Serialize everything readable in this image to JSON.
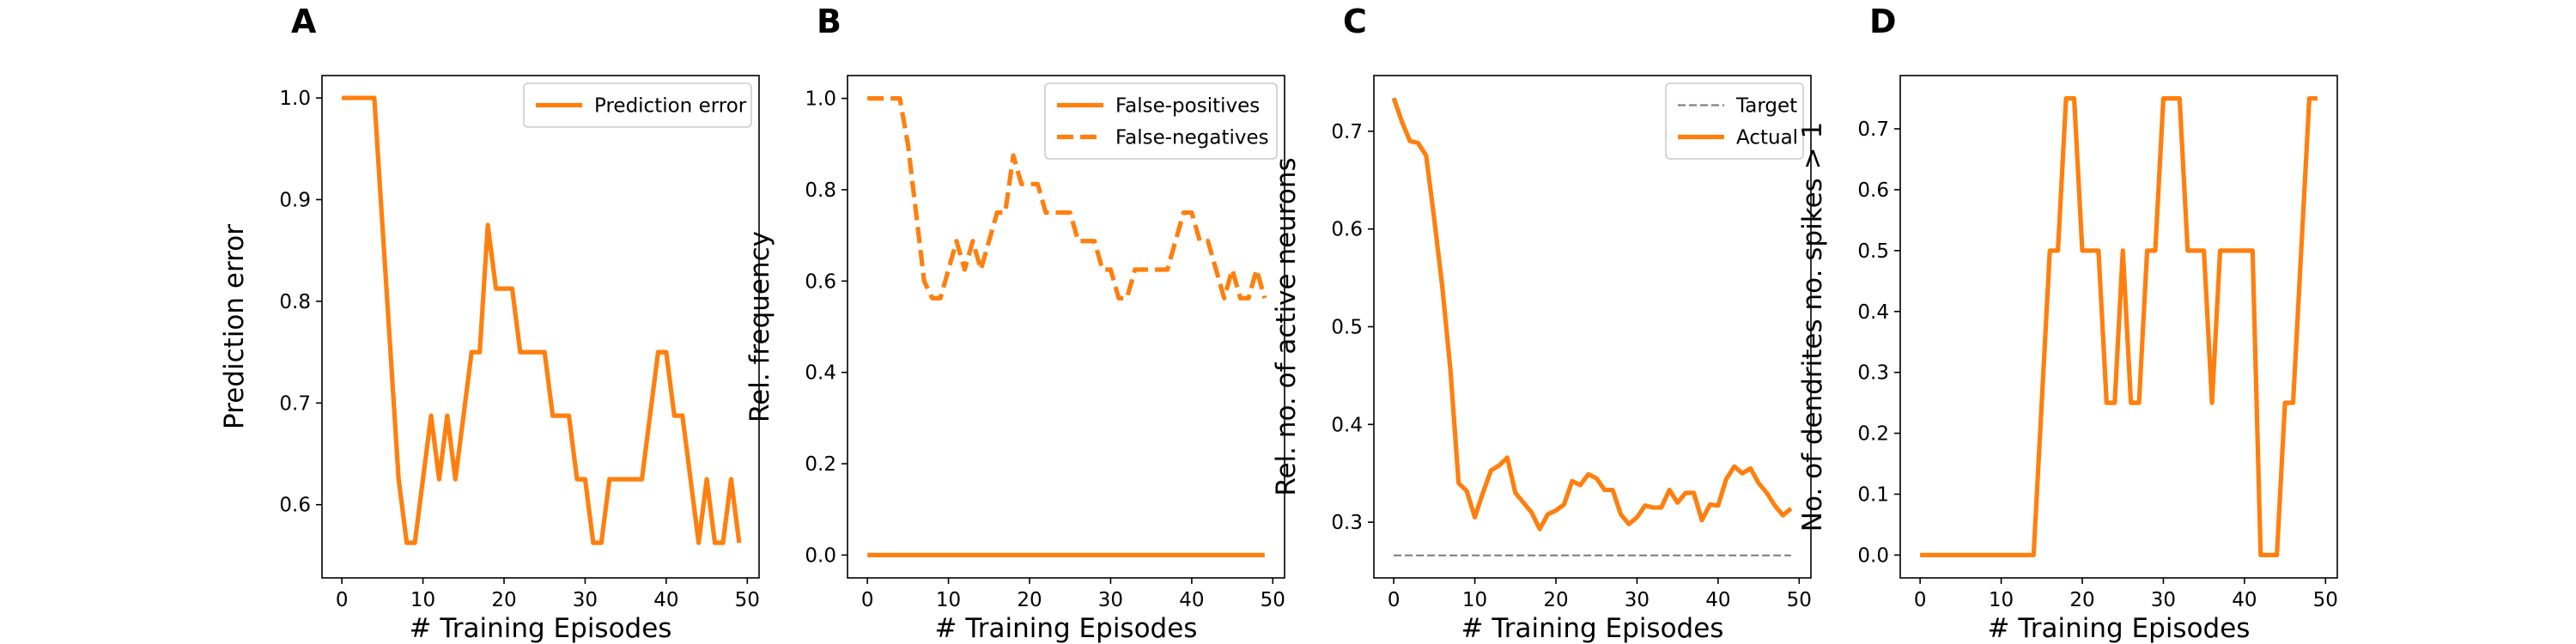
{
  "colors": {
    "series": "#ff7f0e",
    "target": "#808080",
    "frame": "#000000",
    "legend_border": "#cccccc"
  },
  "chart_data": [
    {
      "type": "line",
      "panel_label": "A",
      "xlabel": "# Training Episodes",
      "ylabel": "Prediction error",
      "xlim": [
        -2.45,
        51.45
      ],
      "ylim": [
        0.528,
        1.022
      ],
      "xticks": [
        0,
        10,
        20,
        30,
        40,
        50
      ],
      "yticks": [
        0.6,
        0.7,
        0.8,
        0.9,
        1.0
      ],
      "ytick_format": 1,
      "legend_position": "upper-right",
      "series": [
        {
          "name": "Prediction error",
          "style": "solid",
          "x": [
            0,
            1,
            2,
            3,
            4,
            5,
            6,
            7,
            8,
            9,
            10,
            11,
            12,
            13,
            14,
            15,
            16,
            17,
            18,
            19,
            20,
            21,
            22,
            23,
            24,
            25,
            26,
            27,
            28,
            29,
            30,
            31,
            32,
            33,
            34,
            35,
            36,
            37,
            38,
            39,
            40,
            41,
            42,
            43,
            44,
            45,
            46,
            47,
            48,
            49
          ],
          "y": [
            1.0,
            1.0,
            1.0,
            1.0,
            1.0,
            0.875,
            0.75,
            0.625,
            0.5625,
            0.5625,
            0.625,
            0.6875,
            0.625,
            0.6875,
            0.625,
            0.6875,
            0.75,
            0.75,
            0.875,
            0.8125,
            0.8125,
            0.8125,
            0.75,
            0.75,
            0.75,
            0.75,
            0.6875,
            0.6875,
            0.6875,
            0.625,
            0.625,
            0.5625,
            0.5625,
            0.625,
            0.625,
            0.625,
            0.625,
            0.625,
            0.6875,
            0.75,
            0.75,
            0.6875,
            0.6875,
            0.625,
            0.5625,
            0.625,
            0.5625,
            0.5625,
            0.625,
            0.5625
          ]
        }
      ]
    },
    {
      "type": "line",
      "panel_label": "B",
      "xlabel": "# Training Episodes",
      "ylabel": "Rel. frequency",
      "xlim": [
        -2.45,
        51.45
      ],
      "ylim": [
        -0.05,
        1.05
      ],
      "xticks": [
        0,
        10,
        20,
        30,
        40,
        50
      ],
      "yticks": [
        0.0,
        0.2,
        0.4,
        0.6,
        0.8,
        1.0
      ],
      "ytick_format": 1,
      "legend_position": "upper-right",
      "series": [
        {
          "name": "False-positives",
          "style": "solid",
          "x": [
            0,
            49
          ],
          "y": [
            0.0,
            0.0
          ]
        },
        {
          "name": "False-negatives",
          "style": "dashed",
          "x": [
            0,
            1,
            2,
            3,
            4,
            5,
            6,
            7,
            8,
            9,
            10,
            11,
            12,
            13,
            14,
            15,
            16,
            17,
            18,
            19,
            20,
            21,
            22,
            23,
            24,
            25,
            26,
            27,
            28,
            29,
            30,
            31,
            32,
            33,
            34,
            35,
            36,
            37,
            38,
            39,
            40,
            41,
            42,
            43,
            44,
            45,
            46,
            47,
            48,
            49
          ],
          "y": [
            1.0,
            1.0,
            1.0,
            1.0,
            1.0,
            0.9,
            0.75,
            0.6,
            0.5625,
            0.5625,
            0.625,
            0.6875,
            0.625,
            0.6875,
            0.625,
            0.6875,
            0.75,
            0.75,
            0.875,
            0.8125,
            0.8125,
            0.8125,
            0.75,
            0.75,
            0.75,
            0.75,
            0.6875,
            0.6875,
            0.6875,
            0.625,
            0.625,
            0.5625,
            0.5625,
            0.625,
            0.625,
            0.625,
            0.625,
            0.625,
            0.6875,
            0.75,
            0.75,
            0.6875,
            0.6875,
            0.625,
            0.5625,
            0.625,
            0.5625,
            0.5625,
            0.625,
            0.5625
          ]
        }
      ]
    },
    {
      "type": "line",
      "panel_label": "C",
      "xlabel": "# Training Episodes",
      "ylabel": "Rel. no. of active neurons",
      "xlim": [
        -2.45,
        51.45
      ],
      "ylim": [
        0.243,
        0.757
      ],
      "xticks": [
        0,
        10,
        20,
        30,
        40,
        50
      ],
      "yticks": [
        0.3,
        0.4,
        0.5,
        0.6,
        0.7
      ],
      "ytick_format": 1,
      "legend_position": "upper-right",
      "series": [
        {
          "name": "Target",
          "style": "dashed-thin",
          "x": [
            0,
            49
          ],
          "y": [
            0.266,
            0.266
          ]
        },
        {
          "name": "Actual",
          "style": "solid",
          "x": [
            0,
            1,
            2,
            3,
            4,
            5,
            6,
            7,
            8,
            9,
            10,
            11,
            12,
            13,
            14,
            15,
            16,
            17,
            18,
            19,
            20,
            21,
            22,
            23,
            24,
            25,
            26,
            27,
            28,
            29,
            30,
            31,
            32,
            33,
            34,
            35,
            36,
            37,
            38,
            39,
            40,
            41,
            42,
            43,
            44,
            45,
            46,
            47,
            48,
            49
          ],
          "y": [
            0.734,
            0.71,
            0.69,
            0.688,
            0.675,
            0.61,
            0.54,
            0.455,
            0.34,
            0.332,
            0.305,
            0.33,
            0.353,
            0.358,
            0.366,
            0.33,
            0.32,
            0.31,
            0.293,
            0.308,
            0.312,
            0.318,
            0.342,
            0.338,
            0.349,
            0.345,
            0.333,
            0.333,
            0.308,
            0.298,
            0.305,
            0.317,
            0.315,
            0.315,
            0.333,
            0.32,
            0.33,
            0.33,
            0.302,
            0.318,
            0.317,
            0.344,
            0.357,
            0.35,
            0.355,
            0.34,
            0.33,
            0.317,
            0.307,
            0.314
          ]
        }
      ]
    },
    {
      "type": "line",
      "panel_label": "D",
      "xlabel": "# Training Episodes",
      "ylabel": "No. of dendrites no. spikes > 1",
      "xlim": [
        -2.45,
        51.45
      ],
      "ylim": [
        -0.0375,
        0.7875
      ],
      "xticks": [
        0,
        10,
        20,
        30,
        40,
        50
      ],
      "yticks": [
        0.0,
        0.1,
        0.2,
        0.3,
        0.4,
        0.5,
        0.6,
        0.7
      ],
      "ytick_format": 1,
      "legend_position": "none",
      "series": [
        {
          "style": "solid",
          "x": [
            0,
            1,
            2,
            3,
            4,
            5,
            6,
            7,
            8,
            9,
            10,
            11,
            12,
            13,
            14,
            15,
            16,
            17,
            18,
            19,
            20,
            21,
            22,
            23,
            24,
            25,
            26,
            27,
            28,
            29,
            30,
            31,
            32,
            33,
            34,
            35,
            36,
            37,
            38,
            39,
            40,
            41,
            42,
            43,
            44,
            45,
            46,
            47,
            48,
            49
          ],
          "y": [
            0,
            0,
            0,
            0,
            0,
            0,
            0,
            0,
            0,
            0,
            0,
            0,
            0,
            0,
            0,
            0.25,
            0.5,
            0.5,
            0.75,
            0.75,
            0.5,
            0.5,
            0.5,
            0.25,
            0.25,
            0.5,
            0.25,
            0.25,
            0.5,
            0.5,
            0.75,
            0.75,
            0.75,
            0.5,
            0.5,
            0.5,
            0.25,
            0.5,
            0.5,
            0.5,
            0.5,
            0.5,
            0,
            0,
            0,
            0.25,
            0.25,
            0.5,
            0.75,
            0.75
          ]
        }
      ]
    }
  ]
}
